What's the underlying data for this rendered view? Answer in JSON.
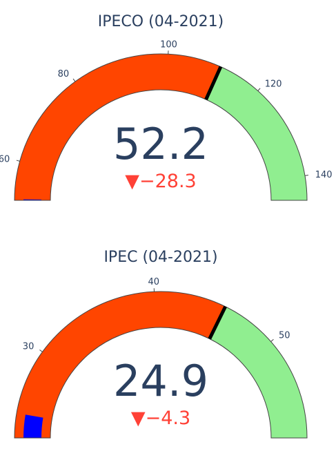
{
  "colors": {
    "text": "#2a3f5f",
    "band_low": "#ff4500",
    "band_high": "#90ee90",
    "bar": "#0000ff",
    "threshold": "#000000",
    "decreasing": "#ff4136",
    "outline": "#444444"
  },
  "chart_data": [
    {
      "type": "gauge",
      "title": "IPECO (04-2021)",
      "value": 52.2,
      "value_text": "52.2",
      "delta": -28.3,
      "delta_text": "▼−28.3",
      "range": [
        52,
        145
      ],
      "threshold": 111,
      "steps": [
        {
          "range": [
            52,
            111
          ],
          "color": "#ff4500"
        },
        {
          "range": [
            111,
            145
          ],
          "color": "#90ee90"
        }
      ],
      "ticks": [
        {
          "value": 60,
          "label": "60"
        },
        {
          "value": 80,
          "label": "80"
        },
        {
          "value": 100,
          "label": "100"
        },
        {
          "value": 120,
          "label": "120"
        },
        {
          "value": 140,
          "label": "140"
        }
      ]
    },
    {
      "type": "gauge",
      "title": "IPEC (04-2021)",
      "value": 24.9,
      "value_text": "24.9",
      "delta": -4.3,
      "delta_text": "▼−4.3",
      "range": [
        23,
        58
      ],
      "threshold": 45.6,
      "steps": [
        {
          "range": [
            23,
            45.6
          ],
          "color": "#ff4500"
        },
        {
          "range": [
            45.6,
            58
          ],
          "color": "#90ee90"
        }
      ],
      "ticks": [
        {
          "value": 30,
          "label": "30"
        },
        {
          "value": 40,
          "label": "40"
        },
        {
          "value": 50,
          "label": "50"
        }
      ]
    }
  ]
}
